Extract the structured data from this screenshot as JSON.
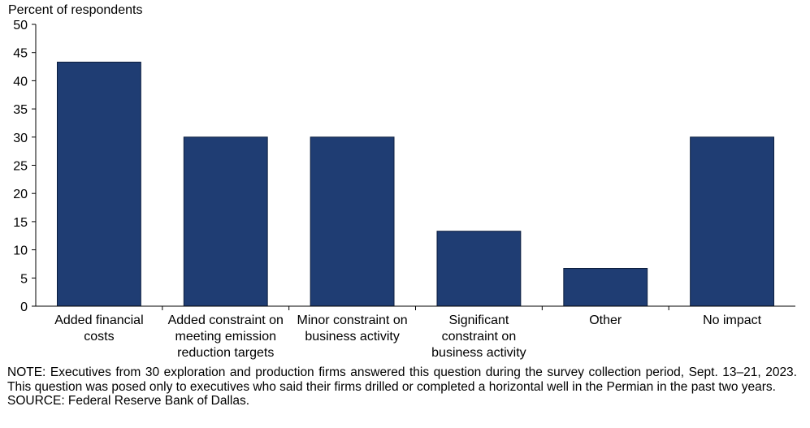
{
  "chart_data": {
    "type": "bar",
    "ylabel": "Percent of respondents",
    "categories": [
      [
        "Added financial",
        "costs"
      ],
      [
        "Added constraint on",
        "meeting emission",
        "reduction targets"
      ],
      [
        "Minor constraint on",
        "business activity"
      ],
      [
        "Significant",
        "constraint on",
        "business activity"
      ],
      [
        "Other"
      ],
      [
        "No impact"
      ]
    ],
    "values": [
      43.3,
      30.0,
      30.0,
      13.3,
      6.7,
      30.0
    ],
    "ylim": [
      0,
      50
    ],
    "yticks": [
      0,
      5,
      10,
      15,
      20,
      25,
      30,
      35,
      40,
      45,
      50
    ],
    "grid": false,
    "bar_color": "#1f3d73",
    "bar_edge_color": "#0d1f3f"
  },
  "note": {
    "text": "NOTE:  Executives  from  30  exploration  and  production  firms  answered  this  question  during  the  survey  collection  period,  Sept. 13–21,  2023.  This  question  was  posed  only  to  executives  who  said  their  firms  drilled  or  completed  a  horizontal  well  in  the Permian  in  the  past  two  years.",
    "source": "SOURCE:  Federal  Reserve  Bank  of  Dallas."
  }
}
